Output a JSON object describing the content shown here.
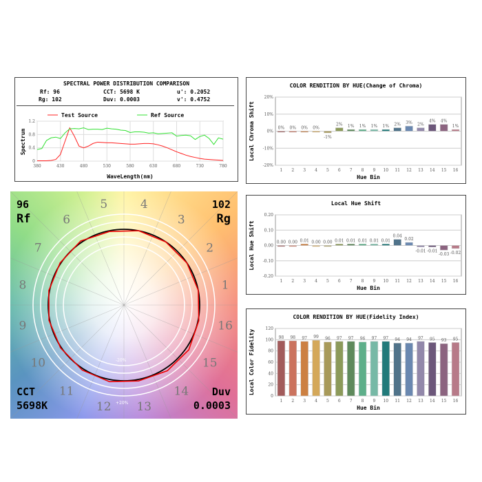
{
  "spd": {
    "title": "SPECTRAL POWER DISTRIBUTION COMPARISON",
    "rf_label": "Rf: 96",
    "rg_label": "Rg: 102",
    "cct_label": "CCT: 5698 K",
    "duv_label": "Duv: 0.0003",
    "u_label": "u': 0.2052",
    "v_label": "v': 0.4752"
  },
  "wheel": {
    "rf_value": "96",
    "rf_label": "Rf",
    "rg_value": "102",
    "rg_label": "Rg",
    "cct_label": "CCT",
    "cct_value": "5698K",
    "duv_label": "Duv",
    "duv_value": "0.0003",
    "minus_label": "-20%",
    "plus_label": "+20%"
  },
  "chart_data": [
    {
      "type": "line",
      "title": "",
      "xlabel": "WaveLength(nm)",
      "ylabel": "Spectrum",
      "xlim": [
        380,
        780
      ],
      "ylim": [
        0,
        1.2
      ],
      "xticks": [
        "380",
        "430",
        "480",
        "530",
        "580",
        "630",
        "680",
        "730",
        "780"
      ],
      "yticks": [
        "0",
        "0.4",
        "0.8",
        "1.2"
      ],
      "x": [
        380,
        390,
        400,
        410,
        420,
        430,
        440,
        450,
        460,
        470,
        480,
        490,
        500,
        510,
        520,
        530,
        540,
        550,
        560,
        570,
        580,
        590,
        600,
        610,
        620,
        630,
        640,
        650,
        660,
        670,
        680,
        690,
        700,
        710,
        720,
        730,
        740,
        750,
        760,
        770,
        780
      ],
      "series": [
        {
          "name": "Test Source",
          "color": "#ff2020",
          "values": [
            0.01,
            0.01,
            0.01,
            0.02,
            0.05,
            0.2,
            0.6,
            1.0,
            0.75,
            0.45,
            0.4,
            0.45,
            0.53,
            0.57,
            0.56,
            0.55,
            0.55,
            0.54,
            0.53,
            0.52,
            0.51,
            0.51,
            0.52,
            0.53,
            0.53,
            0.52,
            0.49,
            0.45,
            0.4,
            0.34,
            0.28,
            0.23,
            0.18,
            0.14,
            0.11,
            0.08,
            0.06,
            0.05,
            0.04,
            0.03,
            0.02
          ]
        },
        {
          "name": "Ref Source",
          "color": "#30e030",
          "values": [
            0.35,
            0.38,
            0.62,
            0.7,
            0.72,
            0.68,
            0.85,
            0.97,
            0.98,
            0.97,
            1.0,
            0.95,
            0.96,
            0.96,
            0.95,
            0.99,
            0.97,
            0.96,
            0.93,
            0.92,
            0.86,
            0.88,
            0.88,
            0.87,
            0.84,
            0.85,
            0.82,
            0.83,
            0.84,
            0.85,
            0.75,
            0.77,
            0.78,
            0.76,
            0.65,
            0.74,
            0.78,
            0.68,
            0.5,
            0.7,
            0.66
          ]
        }
      ]
    },
    {
      "type": "bar",
      "title": "COLOR RENDITION BY HUE(Change of Chroma)",
      "xlabel": "Hue Bin",
      "ylabel": "Local Chroma Shift",
      "ylim": [
        -0.2,
        0.2
      ],
      "yticks": [
        "-20%",
        "-10%",
        "0%",
        "10%",
        "20%"
      ],
      "categories": [
        "1",
        "2",
        "3",
        "4",
        "5",
        "6",
        "7",
        "8",
        "9",
        "10",
        "11",
        "12",
        "13",
        "14",
        "15",
        "16"
      ],
      "values": [
        0,
        0,
        0,
        0,
        -0.01,
        0.02,
        0.01,
        0.01,
        0.01,
        0.01,
        0.02,
        0.03,
        0.02,
        0.04,
        0.04,
        0.01
      ],
      "labels": [
        "0%",
        "0%",
        "0%",
        "0%",
        "-1%",
        "2%",
        "1%",
        "1%",
        "1%",
        "1%",
        "2%",
        "3%",
        "2%",
        "4%",
        "4%",
        "1%"
      ]
    },
    {
      "type": "bar",
      "title": "Local Hue Shift",
      "xlabel": "Hue Bin",
      "ylabel": "Local Hue Shift",
      "ylim": [
        -0.2,
        0.2
      ],
      "yticks": [
        "-0.20",
        "-0.10",
        "0.00",
        "0.10",
        "0.20"
      ],
      "categories": [
        "1",
        "2",
        "3",
        "4",
        "5",
        "6",
        "7",
        "8",
        "9",
        "10",
        "11",
        "12",
        "13",
        "14",
        "15",
        "16"
      ],
      "values": [
        0,
        0,
        0.01,
        0,
        0,
        0.01,
        0.01,
        0.01,
        0.01,
        0.01,
        0.04,
        0.02,
        -0.01,
        -0.01,
        -0.03,
        -0.02
      ],
      "labels": [
        "0.00",
        "0.00",
        "0.01",
        "0.00",
        "0.00",
        "0.01",
        "0.01",
        "0.01",
        "0.01",
        "0.01",
        "0.04",
        "0.02",
        "-0.01",
        "-0.01",
        "-0.03",
        "-0.02"
      ]
    },
    {
      "type": "bar",
      "title": "COLOR RENDITION BY HUE(Fidelity Index)",
      "xlabel": "Hue Bin",
      "ylabel": "Local Color Fidelity",
      "ylim": [
        0,
        120
      ],
      "yticks": [
        "0",
        "20",
        "40",
        "60",
        "80",
        "100",
        "120"
      ],
      "categories": [
        "1",
        "2",
        "3",
        "4",
        "5",
        "6",
        "7",
        "8",
        "9",
        "10",
        "11",
        "12",
        "13",
        "14",
        "15",
        "16"
      ],
      "values": [
        98,
        98,
        97,
        99,
        96,
        97,
        97,
        96,
        97,
        97,
        94,
        94,
        97,
        95,
        93,
        95
      ],
      "labels": [
        "98",
        "98",
        "97",
        "99",
        "96",
        "97",
        "97",
        "96",
        "97",
        "97",
        "94",
        "94",
        "97",
        "95",
        "93",
        "95"
      ]
    }
  ],
  "hue_colors": [
    "#a25b5b",
    "#cb735e",
    "#cc8042",
    "#d4a85a",
    "#a89a5a",
    "#8c9a5a",
    "#5f8a5c",
    "#5eaf8a",
    "#77b9a6",
    "#217a7a",
    "#50738a",
    "#6a88b0",
    "#9288aa",
    "#6c577a",
    "#8c6480",
    "#b77a88"
  ]
}
